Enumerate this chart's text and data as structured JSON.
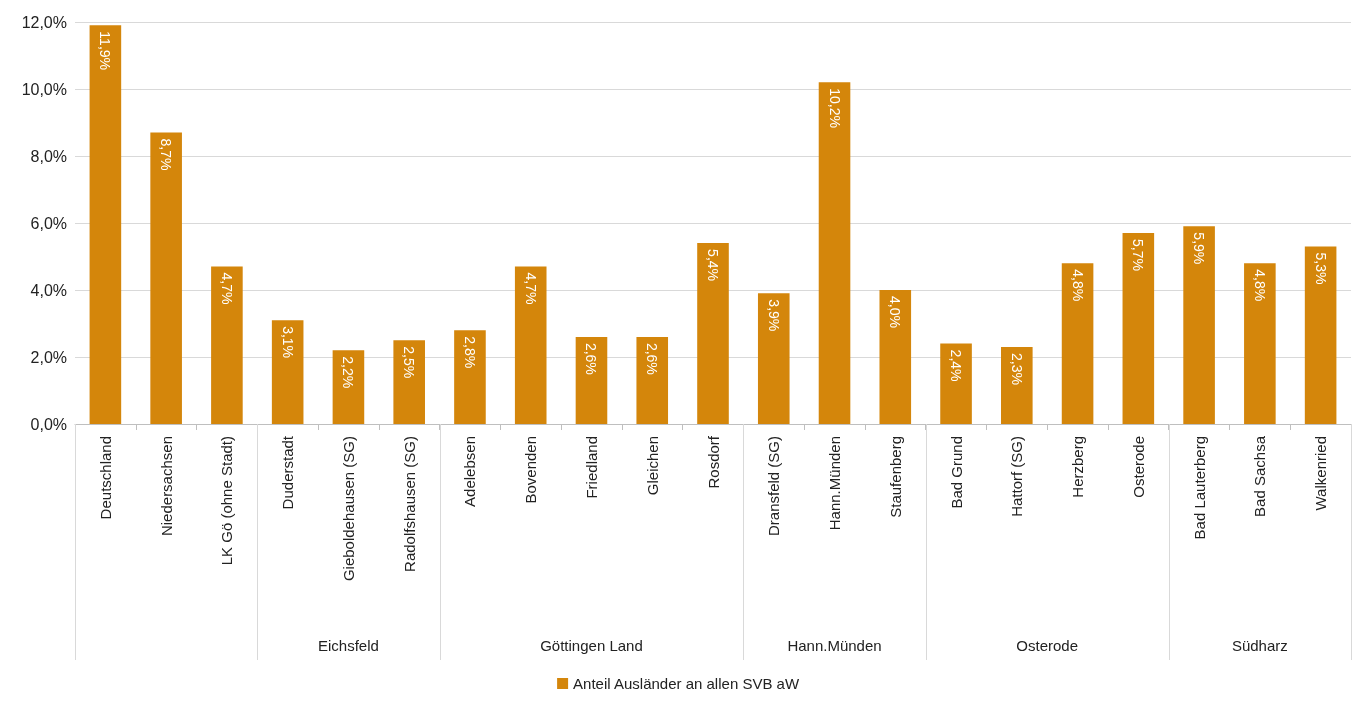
{
  "chart_data": {
    "type": "bar",
    "categories": [
      "Deutschland",
      "Niedersachsen",
      "LK Gö (ohne Stadt)",
      "Duderstadt",
      "Gieboldehausen (SG)",
      "Radolfshausen (SG)",
      "Adelebsen",
      "Bovenden",
      "Friedland",
      "Gleichen",
      "Rosdorf",
      "Dransfeld (SG)",
      "Hann.Münden",
      "Staufenberg",
      "Bad Grund",
      "Hattorf (SG)",
      "Herzberg",
      "Osterode",
      "Bad Lauterberg",
      "Bad Sachsa",
      "Walkenried"
    ],
    "series": [
      {
        "name": "Anteil Ausländer an allen SVB aW",
        "color": "#d4860b",
        "values": [
          11.9,
          8.7,
          4.7,
          3.1,
          2.2,
          2.5,
          2.8,
          4.7,
          2.6,
          2.6,
          5.4,
          3.9,
          10.2,
          4.0,
          2.4,
          2.3,
          4.8,
          5.7,
          5.9,
          4.8,
          5.3
        ],
        "value_labels": [
          "11,9%",
          "8,7%",
          "4,7%",
          "3,1%",
          "2,2%",
          "2,5%",
          "2,8%",
          "4,7%",
          "2,6%",
          "2,6%",
          "5,4%",
          "3,9%",
          "10,2%",
          "4,0%",
          "2,4%",
          "2,3%",
          "4,8%",
          "5,7%",
          "5,9%",
          "4,8%",
          "5,3%"
        ]
      }
    ],
    "ylim": [
      0,
      12
    ],
    "yticks": [
      {
        "value": 0,
        "label": "0,0%"
      },
      {
        "value": 2,
        "label": "2,0%"
      },
      {
        "value": 4,
        "label": "4,0%"
      },
      {
        "value": 6,
        "label": "6,0%"
      },
      {
        "value": 8,
        "label": "8,0%"
      },
      {
        "value": 10,
        "label": "10,0%"
      },
      {
        "value": 12,
        "label": "12,0%"
      }
    ],
    "annotations": [
      "Eichsfeld",
      "Göttingen Land",
      "Hann.Münden",
      "Osterode",
      "Südharz"
    ],
    "grid": "y",
    "legend": "bottom"
  }
}
